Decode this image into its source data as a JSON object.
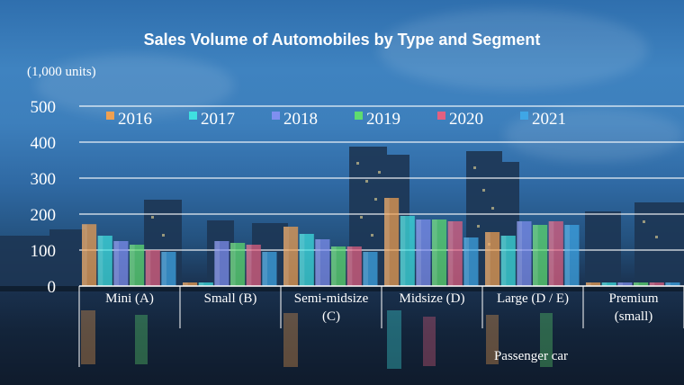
{
  "chart_data": {
    "type": "bar",
    "title": "Sales Volume of Automobiles by Type and Segment",
    "unit_label": "(1,000 units)",
    "group_label": "Passenger car",
    "categories": [
      "Mini (A)",
      "Small (B)",
      "Semi-midsize (C)",
      "Midsize (D)",
      "Large (D / E)",
      "Premium (small)"
    ],
    "category_lines": [
      [
        "Mini (A)"
      ],
      [
        "Small (B)"
      ],
      [
        "Semi-midsize",
        "(C)"
      ],
      [
        "Midsize (D)"
      ],
      [
        "Large (D / E)"
      ],
      [
        "Premium",
        "(small)"
      ]
    ],
    "series": [
      {
        "name": "2016",
        "color": "#f0a050",
        "values": [
          172,
          10,
          165,
          245,
          150,
          10
        ]
      },
      {
        "name": "2017",
        "color": "#3fe0e0",
        "values": [
          140,
          10,
          145,
          195,
          140,
          10
        ]
      },
      {
        "name": "2018",
        "color": "#7f8ff0",
        "values": [
          125,
          125,
          130,
          185,
          180,
          10
        ]
      },
      {
        "name": "2019",
        "color": "#5fdc6f",
        "values": [
          115,
          120,
          110,
          185,
          170,
          10
        ]
      },
      {
        "name": "2020",
        "color": "#e36080",
        "values": [
          100,
          115,
          110,
          180,
          180,
          10
        ]
      },
      {
        "name": "2021",
        "color": "#3fa6e6",
        "values": [
          95,
          95,
          95,
          135,
          170,
          10
        ]
      }
    ],
    "ylim": [
      0,
      500
    ],
    "yticks": [
      0,
      100,
      200,
      300,
      400,
      500
    ],
    "grid": true,
    "legend": "top"
  }
}
